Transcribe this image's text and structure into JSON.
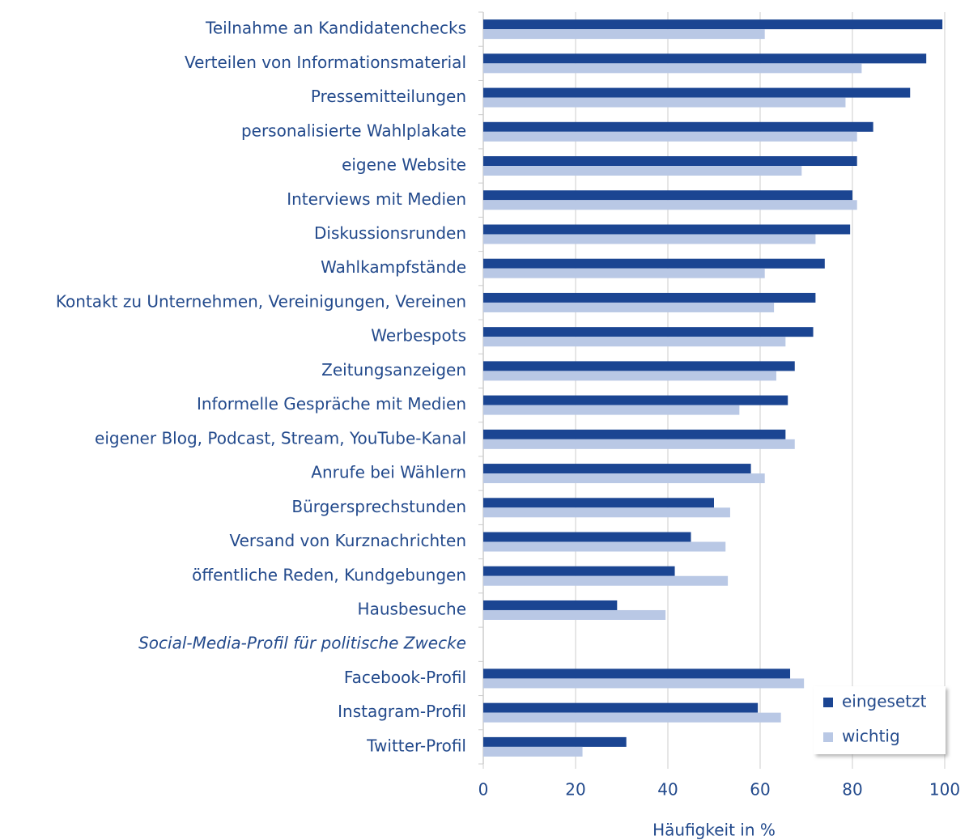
{
  "chart_data": {
    "type": "bar",
    "orientation": "horizontal",
    "x_label": "Häufigkeit in %",
    "categories": [
      "Teilnahme an Kandidatenchecks",
      "Verteilen von Informationsmaterial",
      "Pressemitteilungen",
      "personalisierte Wahlplakate",
      "eigene Website",
      "Interviews mit Medien",
      "Diskussionsrunden",
      "Wahlkampfstände",
      "Kontakt zu Unternehmen, Vereinigungen, Vereinen",
      "Werbespots ",
      "Zeitungsanzeigen",
      "Informelle Gespräche mit Medien",
      "eigener Blog, Podcast, Stream, YouTube-Kanal",
      "Anrufe bei Wählern",
      "Bürgersprechstunden",
      "Versand von Kurznachrichten",
      "öffentliche Reden, Kundgebungen",
      "Hausbesuche",
      "Social-Media-Profil für politische Zwecke",
      "Facebook-Profil",
      "Instagram-Profil",
      "Twitter-Profil"
    ],
    "series": [
      {
        "name": "eingesetzt",
        "color": "#1b4592",
        "values": [
          99.5,
          96,
          92.5,
          84.5,
          81,
          80,
          79.5,
          74,
          72,
          71.5,
          67.5,
          66,
          65.5,
          58,
          50,
          45,
          41.5,
          29,
          null,
          66.5,
          59.5,
          31
        ]
      },
      {
        "name": "wichtig",
        "color": "#b9c8e5",
        "values": [
          61,
          82,
          78.5,
          81,
          69,
          81,
          72,
          61,
          63,
          65.5,
          63.5,
          55.5,
          67.5,
          61,
          53.5,
          52.5,
          53,
          39.5,
          null,
          69.5,
          64.5,
          21.5
        ]
      }
    ],
    "xlim": [
      0,
      100
    ],
    "xticks": [
      0,
      20,
      40,
      60,
      80,
      100
    ],
    "grid": true,
    "legend": "lower right"
  }
}
